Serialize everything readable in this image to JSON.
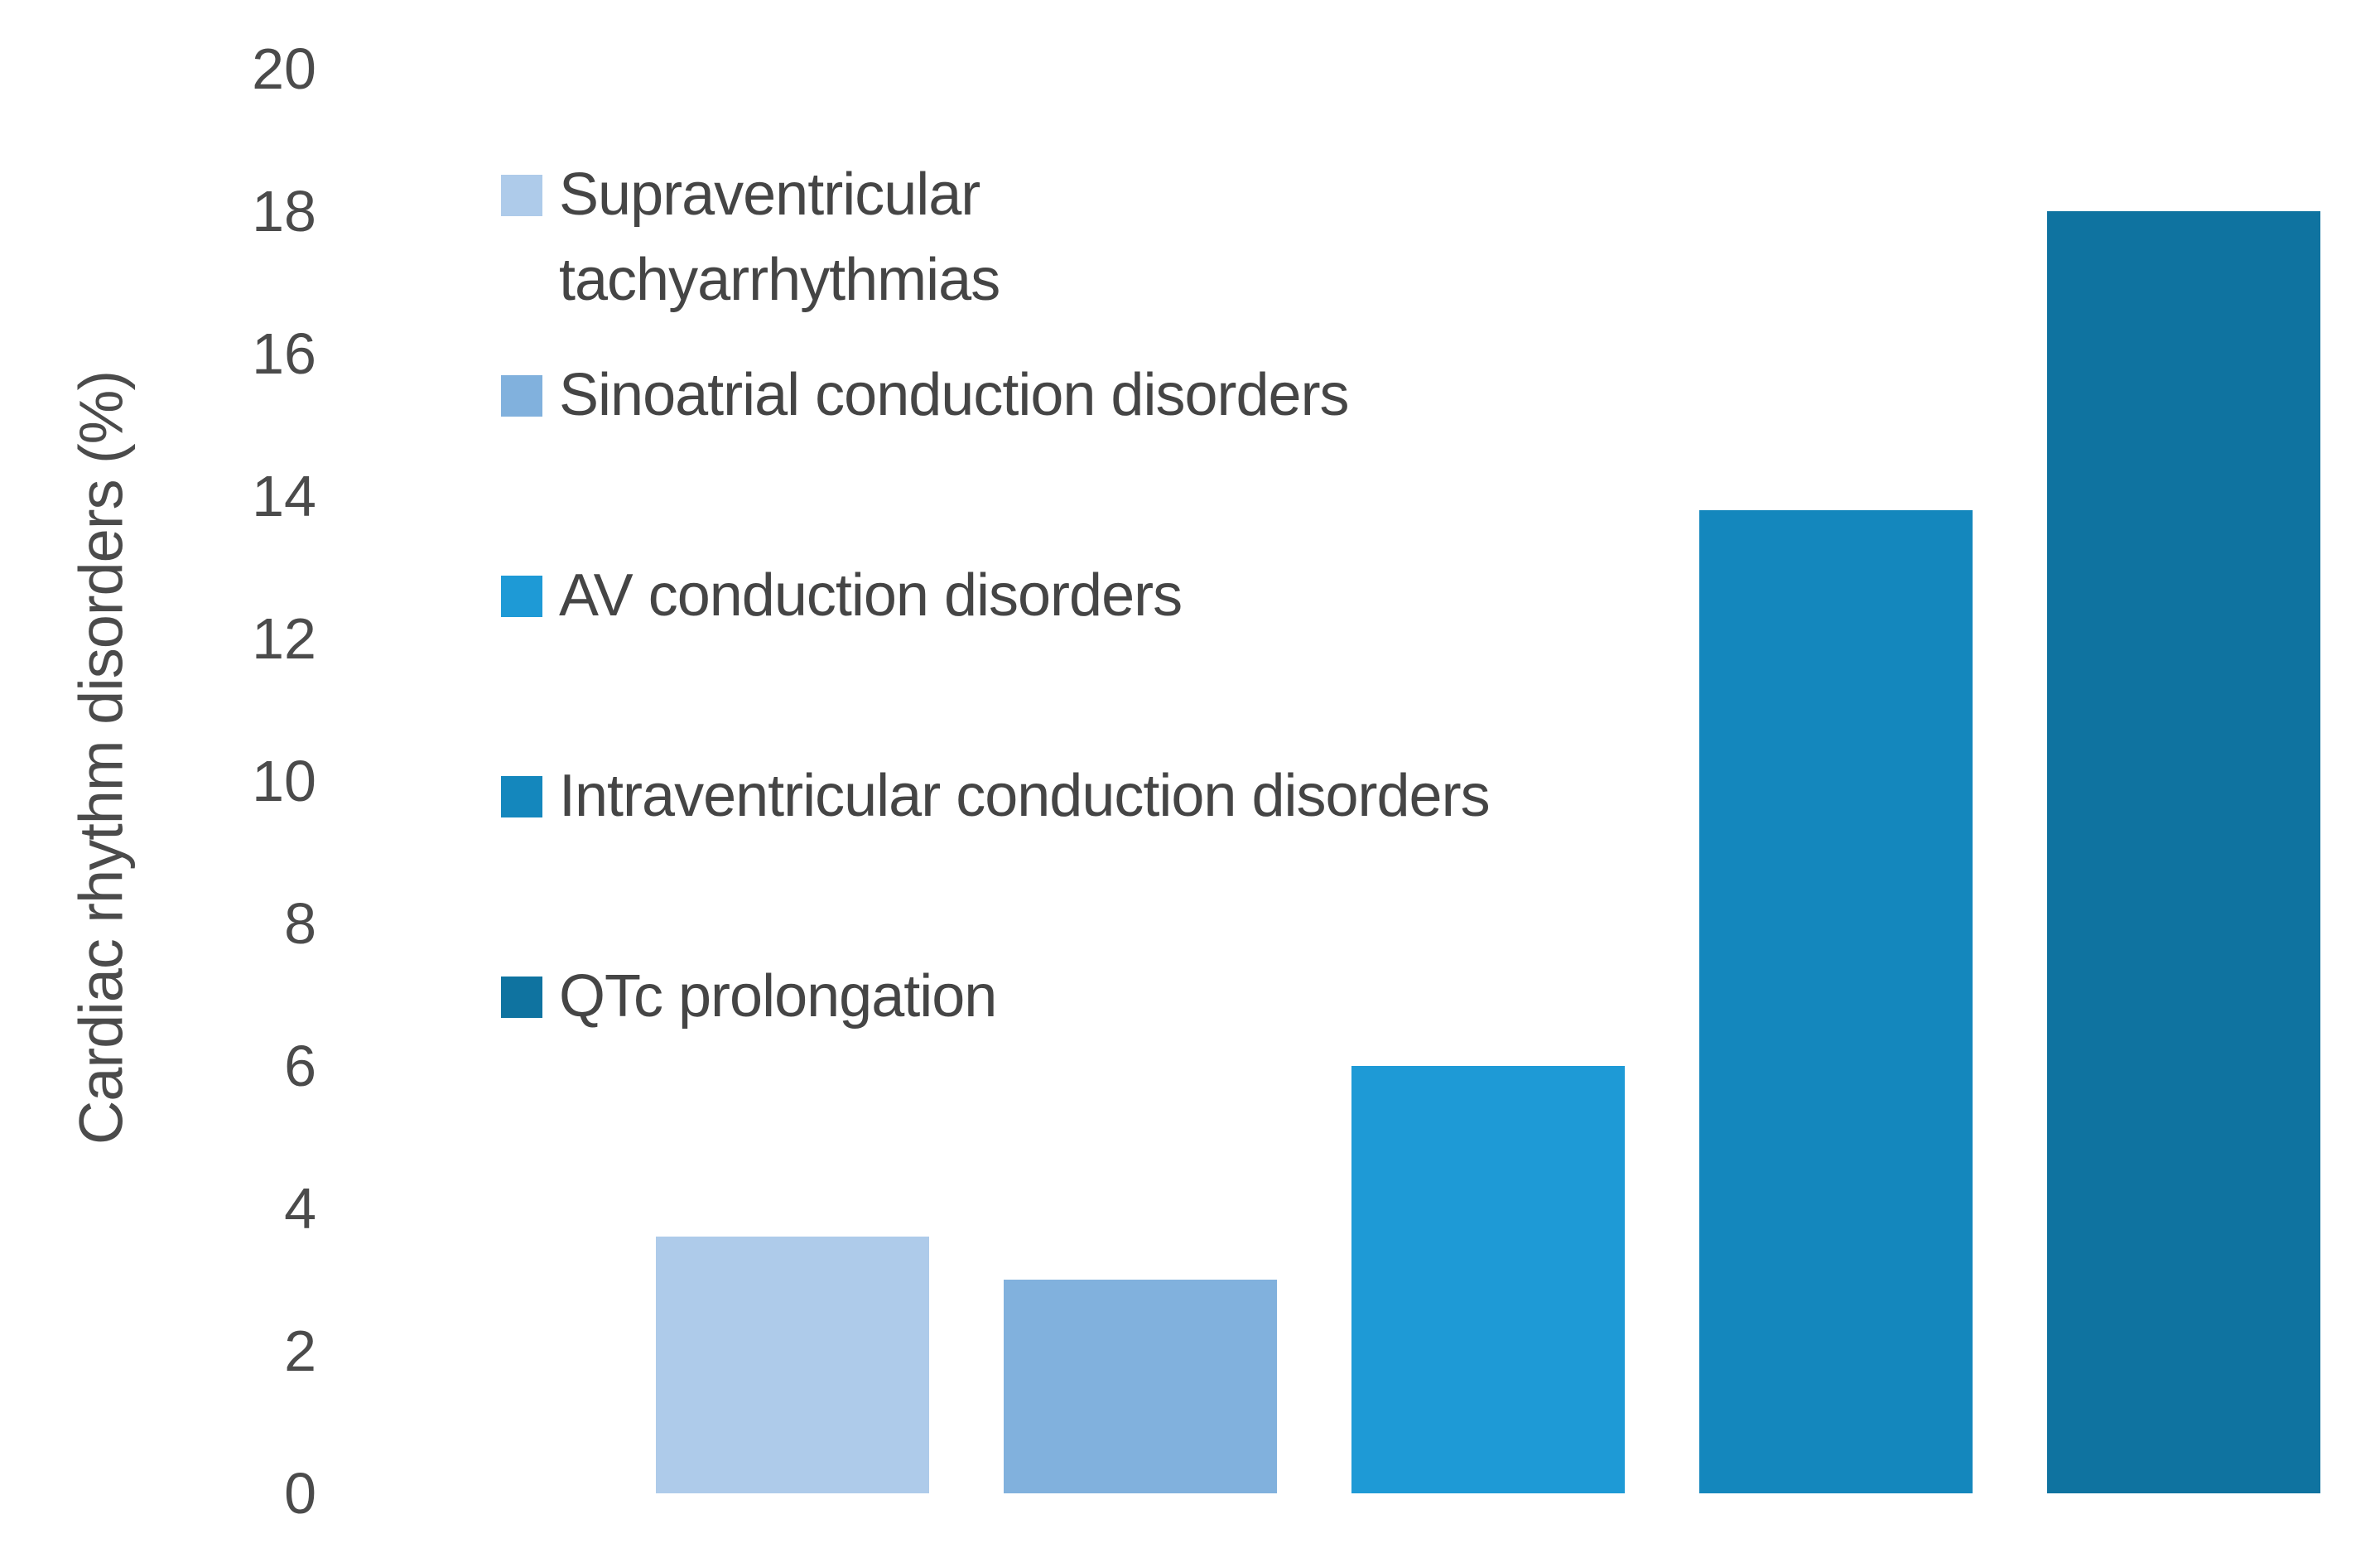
{
  "chart_data": {
    "type": "bar",
    "title": "",
    "xlabel": "",
    "ylabel": "Cardiac rhythm disorders (%)",
    "ylim": [
      0,
      20
    ],
    "ytick_interval": 2,
    "ytick_labels": [
      "0",
      "2",
      "4",
      "6",
      "8",
      "10",
      "12",
      "14",
      "16",
      "18",
      "20"
    ],
    "grid": false,
    "x_axis_labels_shown": false,
    "legend_position": "inside-upper-left",
    "categories": [
      "Supraventricular tachyarrhythmias",
      "Sinoatrial conduction disorders",
      "AV conduction disorders",
      "Intraventricular conduction disorders",
      "QTc prolongation"
    ],
    "values": [
      3.6,
      3.0,
      6.0,
      13.8,
      18.0
    ],
    "bar_colors": [
      "#AECBEA",
      "#81B1DD",
      "#1E9AD6",
      "#1487BD",
      "#0F73A0"
    ],
    "background_color": "#FFFFFF",
    "text_color": "#4B4B4B"
  }
}
